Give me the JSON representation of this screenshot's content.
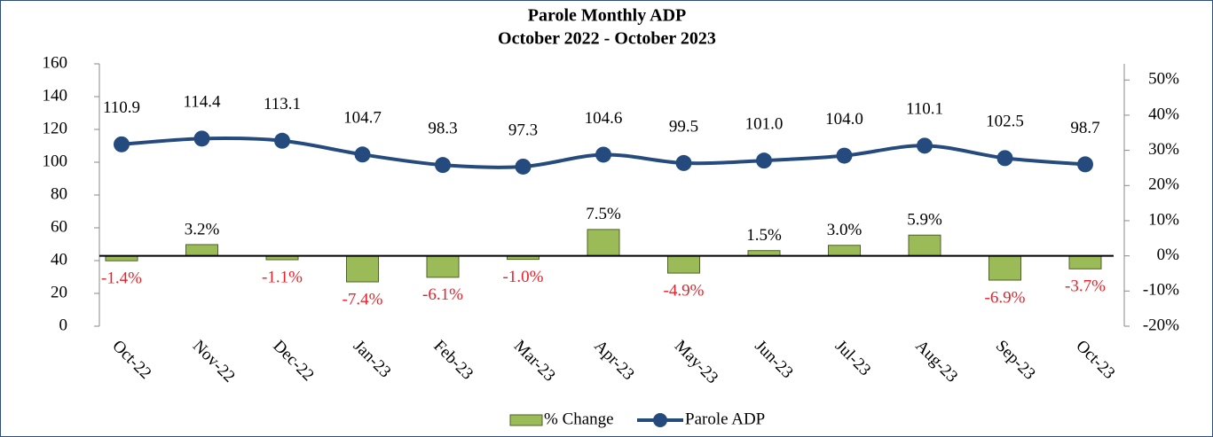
{
  "chart_data": {
    "type": "bar-line",
    "title": "Parole Monthly ADP",
    "subtitle": "October 2022 - October 2023",
    "categories": [
      "Oct-22",
      "Nov-22",
      "Dec-22",
      "Jan-23",
      "Feb-23",
      "Mar-23",
      "Apr-23",
      "May-23",
      "Jun-23",
      "Jul-23",
      "Aug-23",
      "Sep-23",
      "Oct-23"
    ],
    "series": [
      {
        "name": "% Change",
        "type": "bar",
        "axis": "y2",
        "color": "#9bbb59",
        "values": [
          -1.4,
          3.2,
          -1.1,
          -7.4,
          -6.1,
          -1.0,
          7.5,
          -4.9,
          1.5,
          3.0,
          5.9,
          -6.9,
          -3.7
        ],
        "value_labels": [
          "-1.4%",
          "3.2%",
          "-1.1%",
          "-7.4%",
          "-6.1%",
          "-1.0%",
          "7.5%",
          "-4.9%",
          "1.5%",
          "3.0%",
          "5.9%",
          "-6.9%",
          "-3.7%"
        ]
      },
      {
        "name": "Parole ADP",
        "type": "line",
        "axis": "y",
        "color": "#254b7e",
        "values": [
          110.9,
          114.4,
          113.1,
          104.7,
          98.3,
          97.3,
          104.6,
          99.5,
          101.0,
          104.0,
          110.1,
          102.5,
          98.7
        ],
        "value_labels": [
          "110.9",
          "114.4",
          "113.1",
          "104.7",
          "98.3",
          "97.3",
          "104.6",
          "99.5",
          "101.0",
          "104.0",
          "110.1",
          "102.5",
          "98.7"
        ]
      }
    ],
    "ylim": [
      0,
      160
    ],
    "yticks": [
      0,
      20,
      40,
      60,
      80,
      100,
      120,
      140,
      160
    ],
    "y2lim": [
      -20,
      54.6
    ],
    "y2ticks": [
      {
        "value": -20,
        "label": "-20%"
      },
      {
        "value": -10,
        "label": "-10%"
      },
      {
        "value": 0,
        "label": "0%"
      },
      {
        "value": 10,
        "label": "10%"
      },
      {
        "value": 20,
        "label": "20%"
      },
      {
        "value": 30,
        "label": "30%"
      },
      {
        "value": 40,
        "label": "40%"
      },
      {
        "value": 50,
        "label": "50%"
      }
    ],
    "legend": "bottom",
    "grid": false
  }
}
